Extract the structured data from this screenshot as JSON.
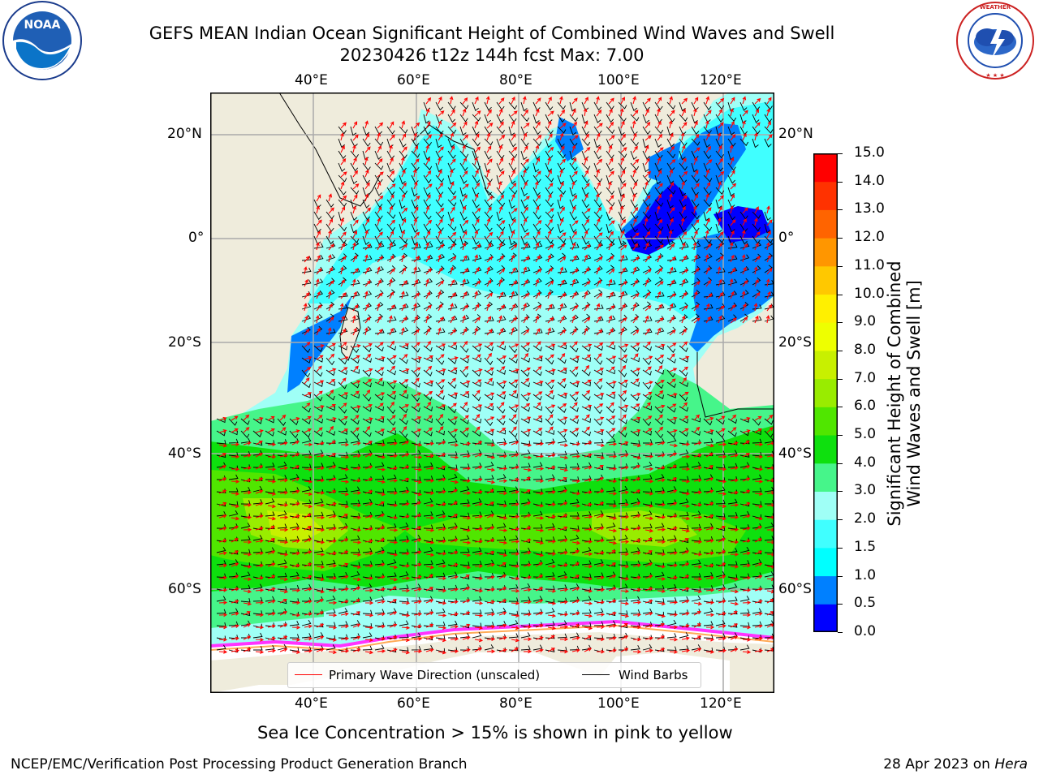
{
  "title": {
    "line1": "GEFS MEAN Indian Ocean Significant Height of Combined Wind Waves and Swell",
    "line2": "20230426 t12z 144h fcst   Max: 7.00"
  },
  "logos": {
    "noaa_text": "NOAA",
    "noaa_ring_text": "NATIONAL OCEANIC AND ATMOSPHERIC ADMINISTRATION · U.S. DEPARTMENT OF COMMERCE",
    "nws_ring_text": "NATIONAL WEATHER SERVICE"
  },
  "map": {
    "lon_labels": [
      "40°E",
      "60°E",
      "80°E",
      "100°E",
      "120°E"
    ],
    "lat_labels": [
      "20°N",
      "0°",
      "20°S",
      "40°S",
      "60°S"
    ],
    "land_color": "#efecdc",
    "ice_colors": [
      "#ff33ff",
      "#ff66cc",
      "#ffaa55",
      "#ffff66"
    ]
  },
  "legend": {
    "wave_label": "Primary Wave Direction (unscaled)",
    "wave_color": "#ff0000",
    "barb_label": "Wind Barbs",
    "barb_color": "#000000"
  },
  "colorbar": {
    "title_line1": "Significant Height of Combined",
    "title_line2": "Wind Waves and Swell [m]",
    "ticks": [
      "0.0",
      "0.5",
      "1.0",
      "1.5",
      "2.0",
      "3.0",
      "4.0",
      "5.0",
      "6.0",
      "7.0",
      "8.0",
      "9.0",
      "10.0",
      "11.0",
      "12.0",
      "13.0",
      "14.0",
      "15.0"
    ],
    "colors": [
      "#0000ff",
      "#0080ff",
      "#00ffff",
      "#40ffff",
      "#9ffff6",
      "#46f58a",
      "#0ee00e",
      "#50e600",
      "#99ec00",
      "#c8f000",
      "#eeff00",
      "#fff000",
      "#ffc800",
      "#ff9600",
      "#ff6400",
      "#ff3200",
      "#ff0000"
    ]
  },
  "subtitle": "Sea Ice Concentration > 15% is shown in pink to yellow",
  "footer": {
    "left": "NCEP/EMC/Verification Post Processing Product Generation Branch",
    "right_prefix": "28 Apr 2023 on ",
    "right_host": "Hera"
  }
}
